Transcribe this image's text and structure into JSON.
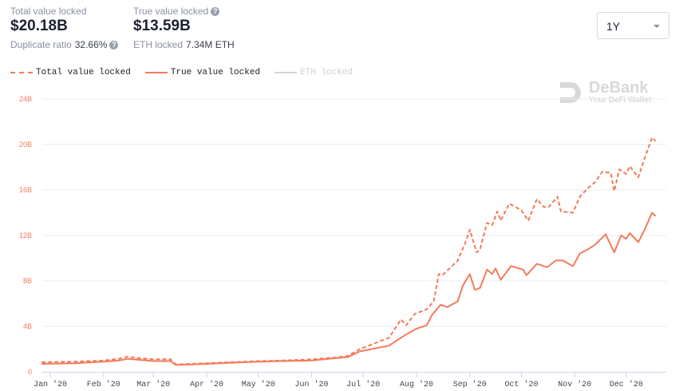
{
  "stats": {
    "total_label": "Total value locked",
    "total_value": "$20.18B",
    "dup_label": "Duplicate ratio",
    "dup_value": "32.66%",
    "true_label": "True value locked",
    "true_value": "$13.59B",
    "eth_label": "ETH locked",
    "eth_value": "7.34M ETH"
  },
  "range_select": {
    "value": "1Y"
  },
  "logo": {
    "name": "DeBank",
    "tagline": "Your DeFi Wallet"
  },
  "colors": {
    "series": "#f37b5a",
    "disabled": "#d4d4d4",
    "axis": "#f37b5a"
  },
  "chart_data": {
    "type": "line",
    "legend": [
      {
        "name": "Total value locked",
        "style": "dashed",
        "enabled": true
      },
      {
        "name": "True value locked",
        "style": "solid",
        "enabled": true
      },
      {
        "name": "ETH locked",
        "style": "solid",
        "enabled": false
      }
    ],
    "legend_placement": "top-left",
    "grid": true,
    "ylim": [
      0,
      24
    ],
    "yticks": [
      "0",
      "4B",
      "8B",
      "12B",
      "16B",
      "20B",
      "24B"
    ],
    "xticks": [
      "Jan '20",
      "Feb '20",
      "Mar '20",
      "Apr '20",
      "May '20",
      "Jun '20",
      "Jul '20",
      "Aug '20",
      "Sep '20",
      "Oct '20",
      "Nov '20",
      "Dec '20"
    ],
    "xtick_dates": [
      "2020-01-01",
      "2020-02-01",
      "2020-03-01",
      "2020-04-01",
      "2020-05-01",
      "2020-06-01",
      "2020-07-01",
      "2020-08-01",
      "2020-09-01",
      "2020-10-01",
      "2020-11-01",
      "2020-12-01"
    ],
    "series": [
      {
        "name": "Total value locked",
        "points": [
          [
            "2019-12-27",
            0.85
          ],
          [
            "2020-01-15",
            0.9
          ],
          [
            "2020-02-01",
            1.0
          ],
          [
            "2020-02-10",
            1.15
          ],
          [
            "2020-02-15",
            1.35
          ],
          [
            "2020-02-22",
            1.2
          ],
          [
            "2020-03-01",
            1.1
          ],
          [
            "2020-03-11",
            1.1
          ],
          [
            "2020-03-14",
            0.65
          ],
          [
            "2020-04-01",
            0.75
          ],
          [
            "2020-04-15",
            0.85
          ],
          [
            "2020-05-01",
            0.95
          ],
          [
            "2020-05-15",
            1.0
          ],
          [
            "2020-06-01",
            1.1
          ],
          [
            "2020-06-15",
            1.26
          ],
          [
            "2020-06-22",
            1.4
          ],
          [
            "2020-06-29",
            2.0
          ],
          [
            "2020-07-16",
            3.0
          ],
          [
            "2020-07-23",
            4.6
          ],
          [
            "2020-07-26",
            4.1
          ],
          [
            "2020-07-31",
            5.1
          ],
          [
            "2020-08-07",
            5.5
          ],
          [
            "2020-08-11",
            6.2
          ],
          [
            "2020-08-14",
            8.6
          ],
          [
            "2020-08-16",
            8.5
          ],
          [
            "2020-08-21",
            9.2
          ],
          [
            "2020-08-25",
            9.8
          ],
          [
            "2020-08-29",
            11.2
          ],
          [
            "2020-09-01",
            12.5
          ],
          [
            "2020-09-05",
            10.5
          ],
          [
            "2020-09-07",
            10.8
          ],
          [
            "2020-09-11",
            13.1
          ],
          [
            "2020-09-14",
            12.9
          ],
          [
            "2020-09-17",
            14.1
          ],
          [
            "2020-09-19",
            13.3
          ],
          [
            "2020-09-24",
            14.8
          ],
          [
            "2020-10-01",
            14.2
          ],
          [
            "2020-10-05",
            13.3
          ],
          [
            "2020-10-10",
            15.2
          ],
          [
            "2020-10-14",
            14.5
          ],
          [
            "2020-10-17",
            14.5
          ],
          [
            "2020-10-22",
            15.4
          ],
          [
            "2020-10-24",
            14.1
          ],
          [
            "2020-10-31",
            14.0
          ],
          [
            "2020-11-04",
            15.4
          ],
          [
            "2020-11-09",
            16.2
          ],
          [
            "2020-11-13",
            16.7
          ],
          [
            "2020-11-17",
            17.6
          ],
          [
            "2020-11-22",
            17.5
          ],
          [
            "2020-11-24",
            15.9
          ],
          [
            "2020-11-27",
            17.8
          ],
          [
            "2020-12-01",
            17.4
          ],
          [
            "2020-12-03",
            18.1
          ],
          [
            "2020-12-08",
            17.1
          ],
          [
            "2020-12-11",
            18.5
          ],
          [
            "2020-12-16",
            20.6
          ],
          [
            "2020-12-18",
            20.3
          ]
        ]
      },
      {
        "name": "True value locked",
        "points": [
          [
            "2019-12-27",
            0.7
          ],
          [
            "2020-01-15",
            0.75
          ],
          [
            "2020-02-01",
            0.9
          ],
          [
            "2020-02-10",
            1.0
          ],
          [
            "2020-02-15",
            1.15
          ],
          [
            "2020-02-22",
            1.05
          ],
          [
            "2020-03-01",
            0.95
          ],
          [
            "2020-03-11",
            0.95
          ],
          [
            "2020-03-14",
            0.6
          ],
          [
            "2020-04-01",
            0.7
          ],
          [
            "2020-04-15",
            0.8
          ],
          [
            "2020-05-01",
            0.9
          ],
          [
            "2020-05-15",
            0.95
          ],
          [
            "2020-06-01",
            1.0
          ],
          [
            "2020-06-15",
            1.2
          ],
          [
            "2020-06-22",
            1.3
          ],
          [
            "2020-06-29",
            1.8
          ],
          [
            "2020-07-16",
            2.3
          ],
          [
            "2020-07-25",
            3.2
          ],
          [
            "2020-08-01",
            3.8
          ],
          [
            "2020-08-07",
            4.1
          ],
          [
            "2020-08-10",
            5.0
          ],
          [
            "2020-08-15",
            5.9
          ],
          [
            "2020-08-19",
            5.7
          ],
          [
            "2020-08-25",
            6.2
          ],
          [
            "2020-08-28",
            7.6
          ],
          [
            "2020-09-01",
            8.6
          ],
          [
            "2020-09-04",
            7.2
          ],
          [
            "2020-09-07",
            7.4
          ],
          [
            "2020-09-11",
            9.0
          ],
          [
            "2020-09-14",
            8.6
          ],
          [
            "2020-09-16",
            9.1
          ],
          [
            "2020-09-19",
            8.1
          ],
          [
            "2020-09-25",
            9.3
          ],
          [
            "2020-10-02",
            9.0
          ],
          [
            "2020-10-04",
            8.5
          ],
          [
            "2020-10-10",
            9.5
          ],
          [
            "2020-10-16",
            9.2
          ],
          [
            "2020-10-21",
            9.8
          ],
          [
            "2020-10-25",
            9.8
          ],
          [
            "2020-10-31",
            9.3
          ],
          [
            "2020-11-04",
            10.4
          ],
          [
            "2020-11-09",
            10.8
          ],
          [
            "2020-11-13",
            11.2
          ],
          [
            "2020-11-19",
            12.1
          ],
          [
            "2020-11-24",
            10.5
          ],
          [
            "2020-11-28",
            12.0
          ],
          [
            "2020-12-01",
            11.7
          ],
          [
            "2020-12-03",
            12.2
          ],
          [
            "2020-12-08",
            11.4
          ],
          [
            "2020-12-12",
            12.6
          ],
          [
            "2020-12-16",
            14.0
          ],
          [
            "2020-12-18",
            13.7
          ]
        ]
      }
    ]
  }
}
